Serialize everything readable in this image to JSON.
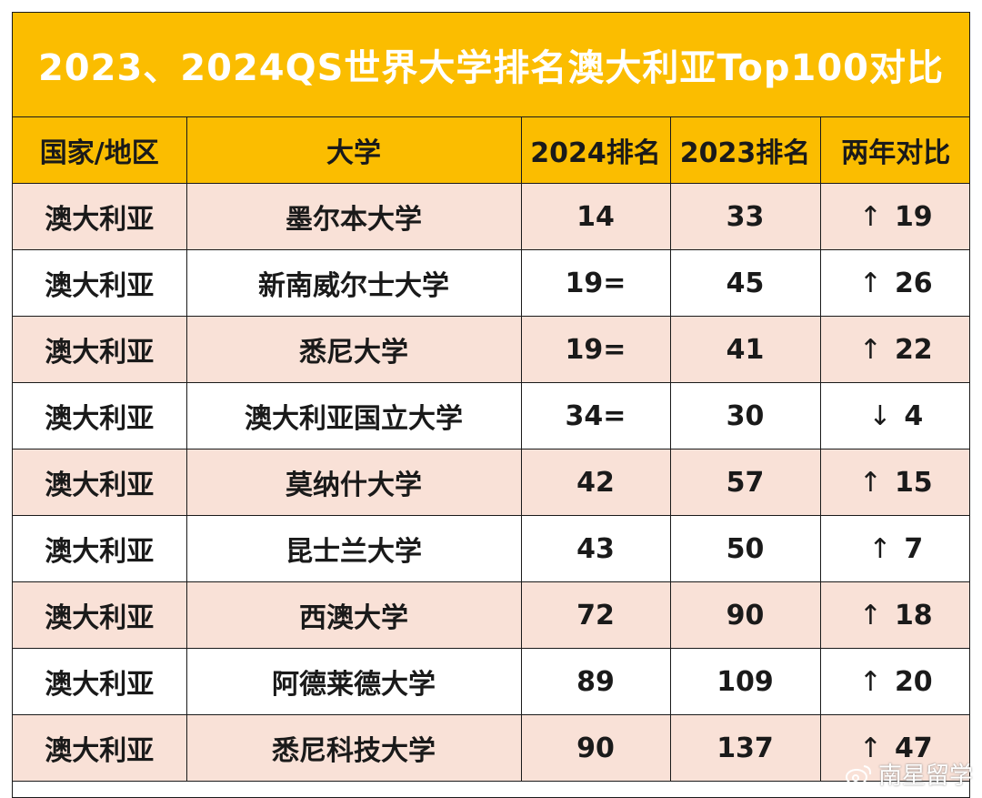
{
  "title": "2023、2024QS世界大学排名澳大利亚Top100对比",
  "table": {
    "headers": [
      "国家/地区",
      "大学",
      "2024排名",
      "2023排名",
      "两年对比"
    ],
    "rows": [
      {
        "country": "澳大利亚",
        "university": "墨尔本大学",
        "rank_2024": "14",
        "rank_2023": "33",
        "arrow": "↑",
        "change": "19"
      },
      {
        "country": "澳大利亚",
        "university": "新南威尔士大学",
        "rank_2024": "19=",
        "rank_2023": "45",
        "arrow": "↑",
        "change": "26"
      },
      {
        "country": "澳大利亚",
        "university": "悉尼大学",
        "rank_2024": "19=",
        "rank_2023": "41",
        "arrow": "↑",
        "change": "22"
      },
      {
        "country": "澳大利亚",
        "university": "澳大利亚国立大学",
        "rank_2024": "34=",
        "rank_2023": "30",
        "arrow": "↓",
        "change": "4"
      },
      {
        "country": "澳大利亚",
        "university": "莫纳什大学",
        "rank_2024": "42",
        "rank_2023": "57",
        "arrow": "↑",
        "change": "15"
      },
      {
        "country": "澳大利亚",
        "university": "昆士兰大学",
        "rank_2024": "43",
        "rank_2023": "50",
        "arrow": "↑",
        "change": "7"
      },
      {
        "country": "澳大利亚",
        "university": "西澳大学",
        "rank_2024": "72",
        "rank_2023": "90",
        "arrow": "↑",
        "change": "18"
      },
      {
        "country": "澳大利亚",
        "university": "阿德莱德大学",
        "rank_2024": "89",
        "rank_2023": "109",
        "arrow": "↑",
        "change": "20"
      },
      {
        "country": "澳大利亚",
        "university": "悉尼科技大学",
        "rank_2024": "90",
        "rank_2023": "137",
        "arrow": "↑",
        "change": "47"
      }
    ]
  },
  "watermark": {
    "text": "南星留学",
    "icon": "weibo-icon"
  },
  "colors": {
    "header": "#fbbd00",
    "row_odd": "#f9e1d7",
    "row_even": "#ffffff",
    "title_text": "#ffffff"
  }
}
